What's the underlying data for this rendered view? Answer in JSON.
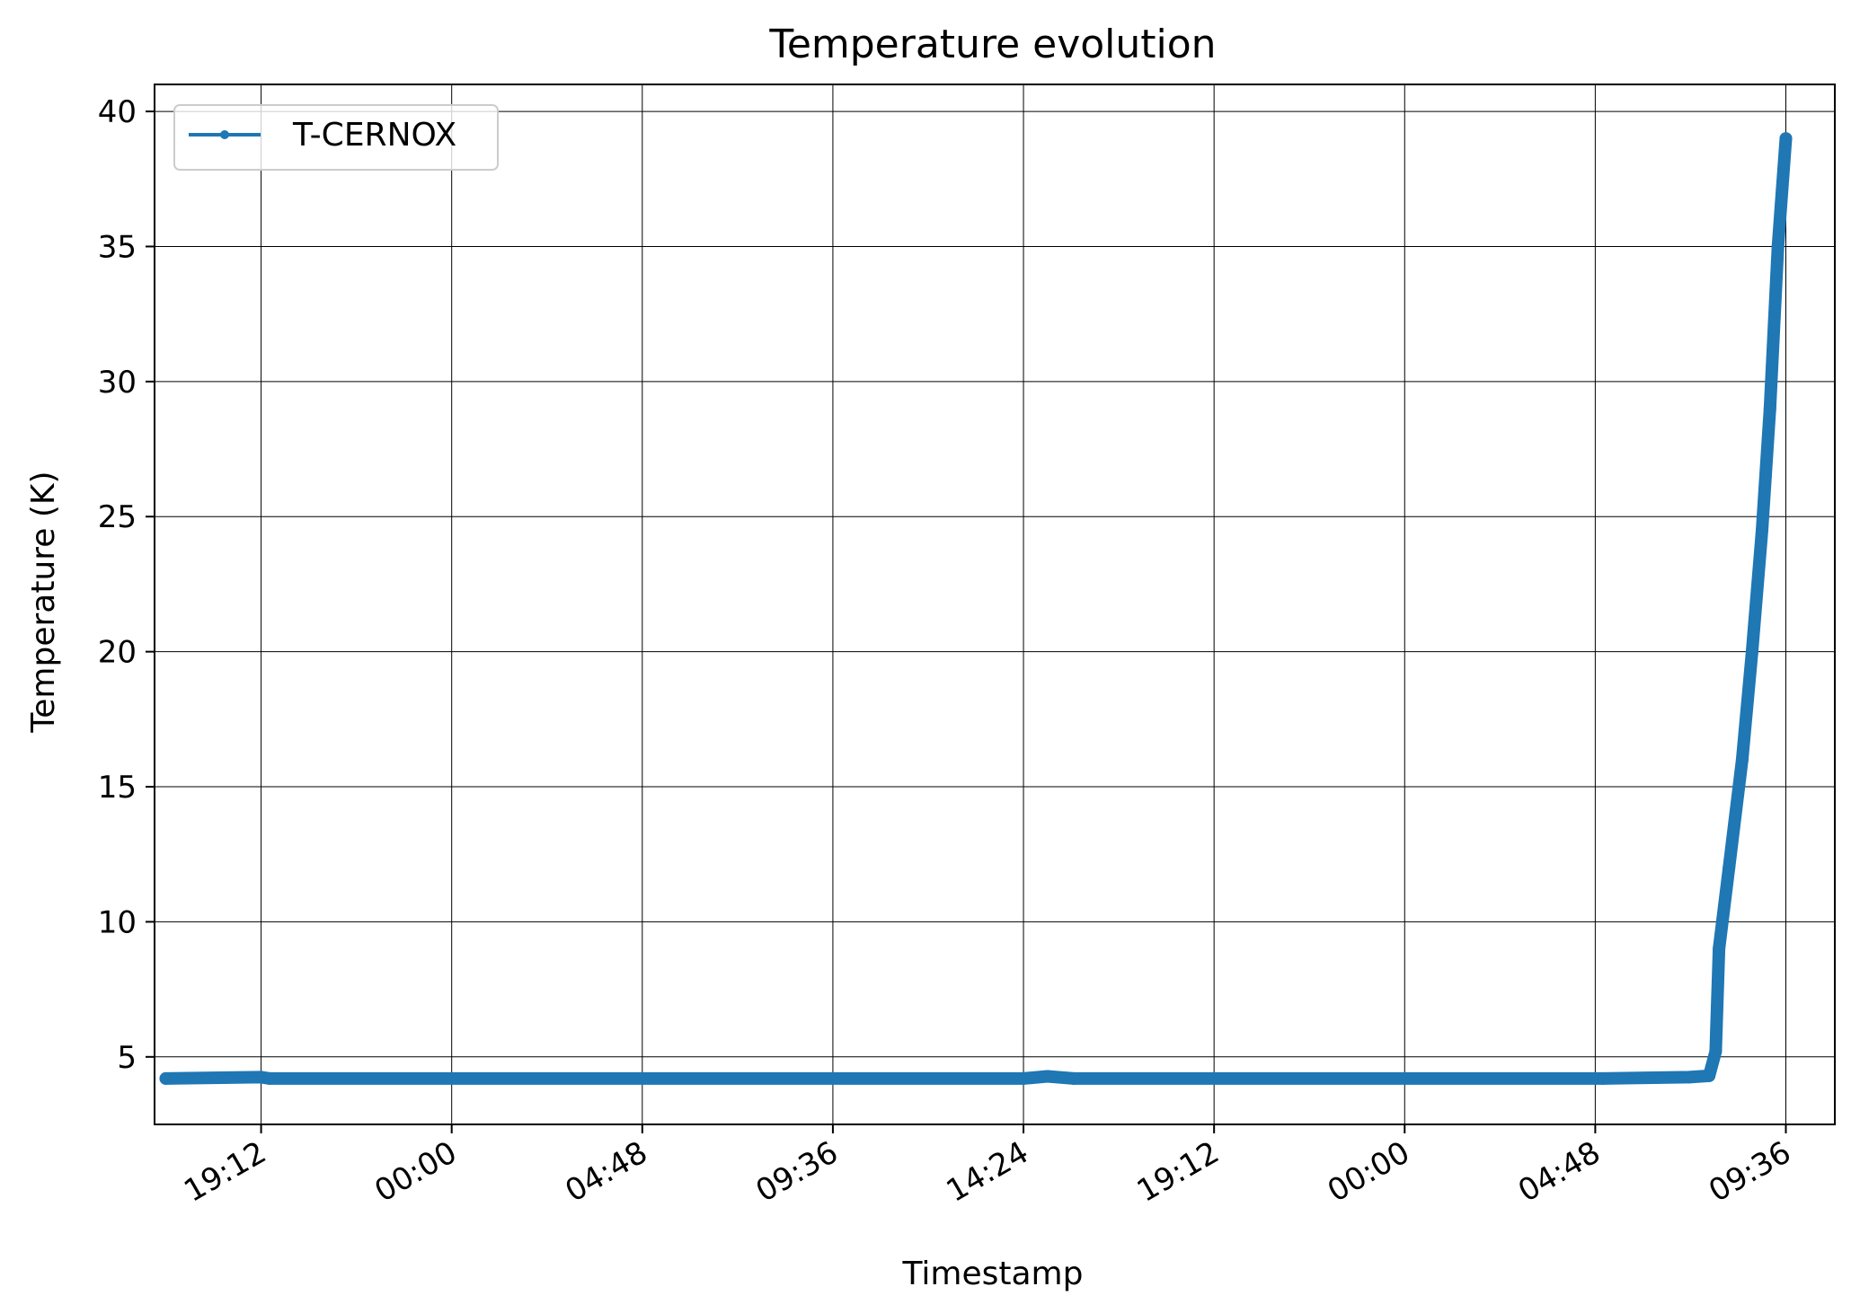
{
  "chart_data": {
    "type": "line",
    "title": "Temperature evolution",
    "xlabel": "Timestamp",
    "ylabel": "Temperature (K)",
    "xlim": [
      "16:31",
      "10:50 +2d"
    ],
    "ylim": [
      2.5,
      41
    ],
    "x_tick_labels": [
      "19:12",
      "00:00",
      "04:48",
      "09:36",
      "14:24",
      "19:12",
      "00:00",
      "04:48",
      "09:36"
    ],
    "y_tick_labels": [
      "5",
      "10",
      "15",
      "20",
      "25",
      "30",
      "35",
      "40"
    ],
    "y_ticks": [
      5,
      10,
      15,
      20,
      25,
      30,
      35,
      40
    ],
    "grid": true,
    "legend_position": "top-left",
    "series": [
      {
        "name": "T-CERNOX",
        "color": "#1f77b4",
        "points": [
          {
            "t": "Day 1 16:48",
            "y": 4.2
          },
          {
            "t": "Day 1 19:12",
            "y": 4.25
          },
          {
            "t": "Day 1 19:25",
            "y": 4.2
          },
          {
            "t": "Day 2 14:24",
            "y": 4.2
          },
          {
            "t": "Day 2 15:00",
            "y": 4.28
          },
          {
            "t": "Day 2 15:40",
            "y": 4.2
          },
          {
            "t": "Day 3 05:00",
            "y": 4.2
          },
          {
            "t": "Day 3 07:10",
            "y": 4.25
          },
          {
            "t": "Day 3 07:40",
            "y": 4.3
          },
          {
            "t": "Day 3 07:50",
            "y": 5.2
          },
          {
            "t": "Day 3 07:55",
            "y": 9.0
          },
          {
            "t": "Day 3 08:10",
            "y": 12.0
          },
          {
            "t": "Day 3 08:30",
            "y": 16.0
          },
          {
            "t": "Day 3 08:45",
            "y": 20.0
          },
          {
            "t": "Day 3 09:00",
            "y": 24.5
          },
          {
            "t": "Day 3 09:12",
            "y": 29.0
          },
          {
            "t": "Day 3 09:24",
            "y": 35.0
          },
          {
            "t": "Day 3 09:36",
            "y": 39.0
          }
        ]
      }
    ]
  }
}
